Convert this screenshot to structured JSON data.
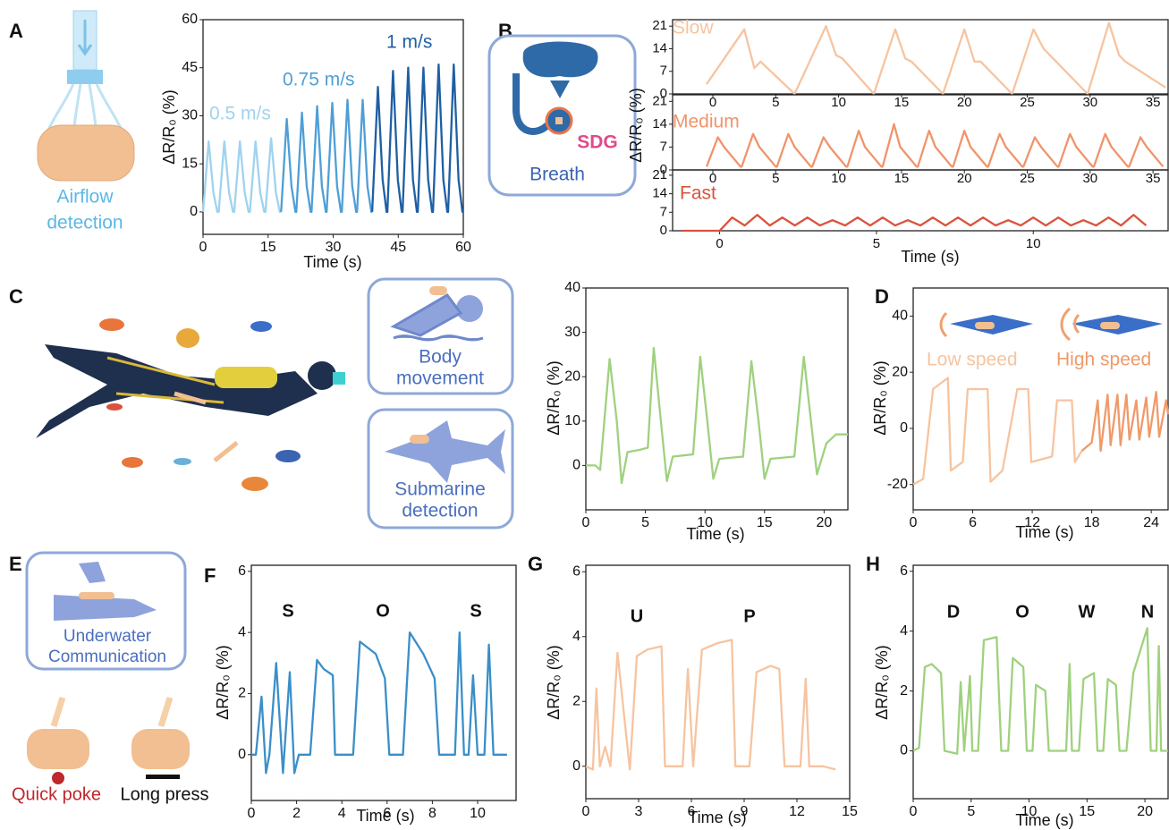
{
  "panels": [
    "A",
    "B",
    "C",
    "D",
    "E",
    "F",
    "G",
    "H"
  ],
  "illustrations": {
    "airflow": [
      "Airflow",
      "detection"
    ],
    "breath": [
      "SDG",
      "Breath"
    ],
    "body": [
      "Body",
      "movement"
    ],
    "submarine": [
      "Submarine",
      "detection"
    ],
    "communication": [
      "Underwater",
      "Communication"
    ],
    "gestures": [
      "Quick poke",
      "Long press"
    ]
  },
  "chart_data": [
    {
      "type": "line",
      "xlabel": "Time (s)",
      "ylabel": "ΔR/R₀ (%)",
      "xlim": [
        0,
        60
      ],
      "ylim": [
        -7,
        60
      ],
      "xticks": [
        0,
        15,
        30,
        45,
        60
      ],
      "yticks": [
        0,
        15,
        30,
        45,
        60
      ],
      "series": [
        {
          "name": "0.5 m/s",
          "color": "#9fd3ee",
          "x": [
            0,
            1.3,
            2.4,
            3.3,
            3.6,
            4.9,
            6.0,
            6.9,
            7.2,
            8.5,
            9.6,
            10.5,
            10.8,
            12.1,
            13.2,
            14.1,
            14.4,
            15.7,
            16.8,
            17.7,
            18
          ],
          "values": [
            0,
            22,
            6,
            0,
            0,
            22,
            6,
            0,
            0,
            22,
            6,
            0,
            0,
            22,
            6,
            0,
            0,
            23,
            6,
            0,
            0
          ]
        },
        {
          "name": "0.75 m/s",
          "color": "#4f9fd6",
          "x": [
            18,
            19.3,
            20.4,
            21.3,
            21.5,
            22.8,
            23.9,
            24.8,
            25,
            26.3,
            27.4,
            28.3,
            28.5,
            29.8,
            30.9,
            31.8,
            32,
            33.3,
            34.4,
            35.3,
            35.5,
            36.8,
            37.9,
            38.8,
            39
          ],
          "values": [
            0,
            29,
            8,
            0,
            0,
            31,
            8,
            0,
            0,
            33,
            8,
            0,
            0,
            34,
            8,
            0,
            0,
            35,
            8,
            0,
            0,
            35,
            8,
            0,
            0
          ]
        },
        {
          "name": "1 m/s",
          "color": "#1f5fa3",
          "x": [
            39,
            40.3,
            41.4,
            42.3,
            42.5,
            43.8,
            44.9,
            45.8,
            46,
            47.3,
            48.4,
            49.3,
            49.5,
            50.8,
            51.9,
            52.8,
            53,
            54.3,
            55.4,
            56.3,
            56.5,
            57.8,
            58.9,
            59.8,
            60
          ],
          "values": [
            0,
            39,
            10,
            0,
            0,
            44,
            10,
            0,
            0,
            45,
            10,
            0,
            0,
            45,
            10,
            0,
            0,
            46,
            10,
            0,
            0,
            46,
            10,
            0,
            0
          ]
        }
      ]
    },
    {
      "type": "line",
      "xlim": [
        -3.2,
        36.2
      ],
      "ylim": [
        0,
        23
      ],
      "xticks": [
        0,
        5,
        10,
        15,
        20,
        25,
        30,
        35
      ],
      "yticks": [
        0,
        7,
        14,
        21
      ],
      "series": [
        {
          "name": "Slow",
          "color": "#f6c4a0",
          "x": [
            -0.5,
            2.5,
            3.3,
            3.8,
            6.5,
            9,
            9.8,
            10.3,
            12.8,
            14.5,
            15.3,
            15.8,
            18.3,
            20,
            20.8,
            21.3,
            23.8,
            25.5,
            26.3,
            26.8,
            29.8,
            31.5,
            32.3,
            32.8,
            36
          ],
          "values": [
            3,
            20,
            8,
            10,
            0,
            21,
            12,
            11,
            0,
            20,
            11,
            10,
            0,
            20,
            10,
            10,
            0,
            20,
            14,
            12,
            0,
            22,
            12,
            10,
            2
          ]
        }
      ]
    },
    {
      "type": "line",
      "ylabel": "ΔR/R₀ (%)",
      "xlim": [
        -3.2,
        36.2
      ],
      "ylim": [
        0,
        23
      ],
      "xticks": [
        0,
        5,
        10,
        15,
        20,
        25,
        30,
        35
      ],
      "yticks": [
        0,
        7,
        14,
        21
      ],
      "series": [
        {
          "name": "Medium",
          "color": "#f0946a",
          "x": [
            -0.5,
            0.4,
            0.9,
            2.2,
            2.3,
            3.2,
            3.7,
            5.0,
            5.1,
            6.0,
            6.5,
            7.8,
            7.9,
            8.8,
            9.3,
            10.6,
            10.7,
            11.6,
            12.1,
            13.4,
            13.5,
            14.4,
            14.9,
            16.2,
            16.3,
            17.2,
            17.7,
            19.0,
            19.1,
            20.0,
            20.5,
            21.8,
            21.9,
            22.8,
            23.3,
            24.6,
            24.7,
            25.6,
            26.1,
            27.4,
            27.5,
            28.4,
            28.9,
            30.2,
            30.3,
            31.2,
            31.7,
            33.0,
            33.1,
            34.0,
            34.5,
            35.8
          ],
          "values": [
            1,
            10,
            7,
            1,
            1,
            11,
            7,
            1,
            1,
            11,
            7,
            1,
            1,
            10,
            7,
            1,
            1,
            12,
            7,
            1,
            1,
            14,
            7,
            1,
            1,
            12,
            7,
            1,
            1,
            12,
            7,
            1,
            1,
            11,
            7,
            1,
            1,
            10,
            7,
            1,
            1,
            11,
            7,
            1,
            1,
            11,
            7,
            1,
            1,
            10,
            7,
            1
          ]
        }
      ]
    },
    {
      "type": "line",
      "xlabel": "Time (s)",
      "xlim": [
        -1.5,
        14.3
      ],
      "ylim": [
        0,
        23
      ],
      "xticks": [
        0,
        5,
        10
      ],
      "yticks": [
        0,
        7,
        14,
        21
      ],
      "series": [
        {
          "name": "Fast",
          "color": "#d9533c",
          "x": [
            -1.2,
            0,
            0.4,
            0.8,
            1.2,
            1.6,
            2.0,
            2.4,
            2.8,
            3.2,
            3.6,
            4.0,
            4.4,
            4.8,
            5.2,
            5.6,
            6.0,
            6.4,
            6.8,
            7.2,
            7.6,
            8.0,
            8.4,
            8.8,
            9.2,
            9.6,
            10.0,
            10.4,
            10.8,
            11.2,
            11.6,
            12.0,
            12.4,
            12.8,
            13.2,
            13.6
          ],
          "values": [
            0,
            0,
            5,
            2,
            6,
            2,
            5,
            2,
            5,
            2,
            4,
            2,
            5,
            2,
            5,
            2,
            4,
            2,
            5,
            2,
            5,
            2,
            5,
            2,
            4,
            2,
            5,
            2,
            5,
            2,
            4,
            2,
            5,
            2,
            6,
            2
          ]
        }
      ]
    },
    {
      "type": "line",
      "xlabel": "Time (s)",
      "ylabel": "ΔR/R₀ (%)",
      "xlim": [
        0,
        22
      ],
      "ylim": [
        -10,
        40
      ],
      "xticks": [
        0,
        5,
        10,
        15,
        20
      ],
      "yticks": [
        0,
        10,
        20,
        30,
        40
      ],
      "series": [
        {
          "color": "#9fd17e",
          "x": [
            0,
            0.8,
            1.2,
            2.0,
            2.6,
            3.0,
            3.5,
            4.5,
            5.2,
            5.7,
            6.3,
            6.8,
            7.3,
            9.0,
            9.6,
            10.2,
            10.7,
            11.2,
            13.2,
            13.9,
            14.5,
            15,
            15.5,
            17.5,
            18.3,
            18.9,
            19.4,
            20.2,
            21,
            22
          ],
          "values": [
            0,
            0,
            -1,
            24,
            10,
            -4,
            3,
            3.5,
            4,
            26.5,
            10,
            -3.5,
            2,
            2.5,
            24.5,
            10,
            -3,
            1.5,
            2,
            23.5,
            10,
            -3,
            1.5,
            2,
            24.5,
            10,
            -2,
            5,
            7,
            7
          ]
        }
      ]
    },
    {
      "type": "line",
      "xlabel": "Time (s)",
      "ylabel": "ΔR/R₀ (%)",
      "xlim": [
        0,
        25.7
      ],
      "ylim": [
        -29,
        50
      ],
      "xticks": [
        0,
        6,
        12,
        18,
        24
      ],
      "yticks": [
        -20,
        0,
        20,
        40
      ],
      "series": [
        {
          "name": "Low speed",
          "color": "#f6c4a0",
          "x": [
            0,
            1,
            2,
            3.5,
            3.8,
            5,
            5.5,
            7.5,
            7.8,
            9,
            10.5,
            11.6,
            11.9,
            14,
            14.5,
            16,
            16.3,
            17
          ],
          "values": [
            -20,
            -18,
            14,
            18,
            -15,
            -12,
            14,
            14,
            -19,
            -15,
            14,
            14,
            -12,
            -10,
            10,
            10,
            -12,
            -8
          ]
        },
        {
          "name": "High speed",
          "color": "#ef9a6a",
          "x": [
            17,
            18,
            18.6,
            18.9,
            19.6,
            19.9,
            20.6,
            20.9,
            21.5,
            21.8,
            22.5,
            22.8,
            23.5,
            23.8,
            24.5,
            24.8,
            25.5,
            25.7
          ],
          "values": [
            -8,
            -5,
            10,
            -8,
            12,
            -6,
            12,
            -6,
            12,
            -4,
            10,
            -4,
            11,
            -3,
            13,
            -3,
            10,
            5
          ]
        }
      ]
    },
    {
      "type": "line",
      "xlabel": "Time (s)",
      "ylabel": "ΔR/R₀ (%)",
      "xlim": [
        0,
        11.7
      ],
      "ylim": [
        -1.5,
        6.2
      ],
      "xticks": [
        0,
        2,
        4,
        6,
        8,
        10
      ],
      "yticks": [
        0,
        2,
        4,
        6
      ],
      "annotations": [
        "S",
        "O",
        "S"
      ],
      "series": [
        {
          "color": "#3a8fc8",
          "x": [
            0,
            0.2,
            0.45,
            0.65,
            0.8,
            1.1,
            1.4,
            1.7,
            1.9,
            2.1,
            2.6,
            2.9,
            3.2,
            3.6,
            3.7,
            4.5,
            4.8,
            5.5,
            5.9,
            6.1,
            6.7,
            7.0,
            7.6,
            8.1,
            8.3,
            9.0,
            9.2,
            9.4,
            9.6,
            9.8,
            10.0,
            10.3,
            10.5,
            10.7,
            11.3
          ],
          "values": [
            0,
            0,
            1.9,
            -0.6,
            0,
            3,
            -0.6,
            2.7,
            -0.6,
            0,
            0,
            3.1,
            2.8,
            2.6,
            0,
            0,
            3.7,
            3.3,
            2.5,
            0,
            0,
            4,
            3.3,
            2.5,
            0,
            0,
            4,
            0,
            0,
            2.6,
            0,
            0,
            3.6,
            0,
            0
          ]
        }
      ]
    },
    {
      "type": "line",
      "xlabel": "Time (s)",
      "ylabel": "ΔR/R₀ (%)",
      "xlim": [
        0,
        15
      ],
      "ylim": [
        -1,
        6.2
      ],
      "xticks": [
        0,
        3,
        6,
        9,
        12,
        15
      ],
      "yticks": [
        0,
        2,
        4,
        6
      ],
      "annotations": [
        "U",
        "P"
      ],
      "series": [
        {
          "color": "#f6c4a0",
          "x": [
            0,
            0.4,
            0.6,
            0.8,
            1.1,
            1.4,
            1.8,
            2.5,
            2.9,
            3.5,
            4.3,
            4.5,
            5.5,
            5.8,
            6.1,
            6.6,
            7.5,
            8.3,
            8.5,
            9.3,
            9.7,
            10.5,
            11.0,
            11.3,
            12.2,
            12.5,
            12.7,
            13.5,
            14.2
          ],
          "values": [
            0,
            -0.1,
            2.4,
            0,
            0.6,
            0,
            3.5,
            -0.1,
            3.4,
            3.6,
            3.7,
            0,
            0,
            3,
            0,
            3.6,
            3.8,
            3.9,
            0,
            0,
            2.9,
            3.1,
            3.0,
            0,
            0,
            2.7,
            0,
            0,
            -0.1
          ]
        }
      ]
    },
    {
      "type": "line",
      "xlabel": "Time (s)",
      "ylabel": "ΔR/R₀ (%)",
      "xlim": [
        0,
        22
      ],
      "ylim": [
        -1.6,
        6.2
      ],
      "xticks": [
        0,
        5,
        10,
        15,
        20
      ],
      "yticks": [
        0,
        2,
        4,
        6
      ],
      "annotations": [
        "D",
        "O",
        "W",
        "N"
      ],
      "series": [
        {
          "color": "#9fd17e",
          "x": [
            0,
            0.5,
            1,
            1.6,
            2.4,
            2.7,
            3.8,
            4.1,
            4.4,
            4.9,
            5.1,
            5.6,
            6.1,
            7.2,
            7.6,
            8.2,
            8.6,
            9.5,
            9.8,
            10.3,
            10.6,
            11.4,
            11.7,
            13.2,
            13.5,
            13.7,
            14.3,
            14.7,
            15.6,
            15.9,
            16.4,
            16.8,
            17.5,
            17.8,
            18.4,
            19,
            20.2,
            20.5,
            21,
            21.2,
            21.4,
            22
          ],
          "values": [
            0,
            0.1,
            2.8,
            2.9,
            2.6,
            0,
            -0.1,
            2.3,
            0,
            2.5,
            0,
            0,
            3.7,
            3.8,
            0,
            0,
            3.1,
            2.8,
            0,
            0,
            2.2,
            2.0,
            0,
            0,
            2.9,
            0,
            0,
            2.4,
            2.6,
            0,
            0,
            2.4,
            2.2,
            0,
            0,
            2.6,
            4.1,
            0,
            0,
            3.5,
            0,
            0
          ]
        }
      ]
    }
  ]
}
